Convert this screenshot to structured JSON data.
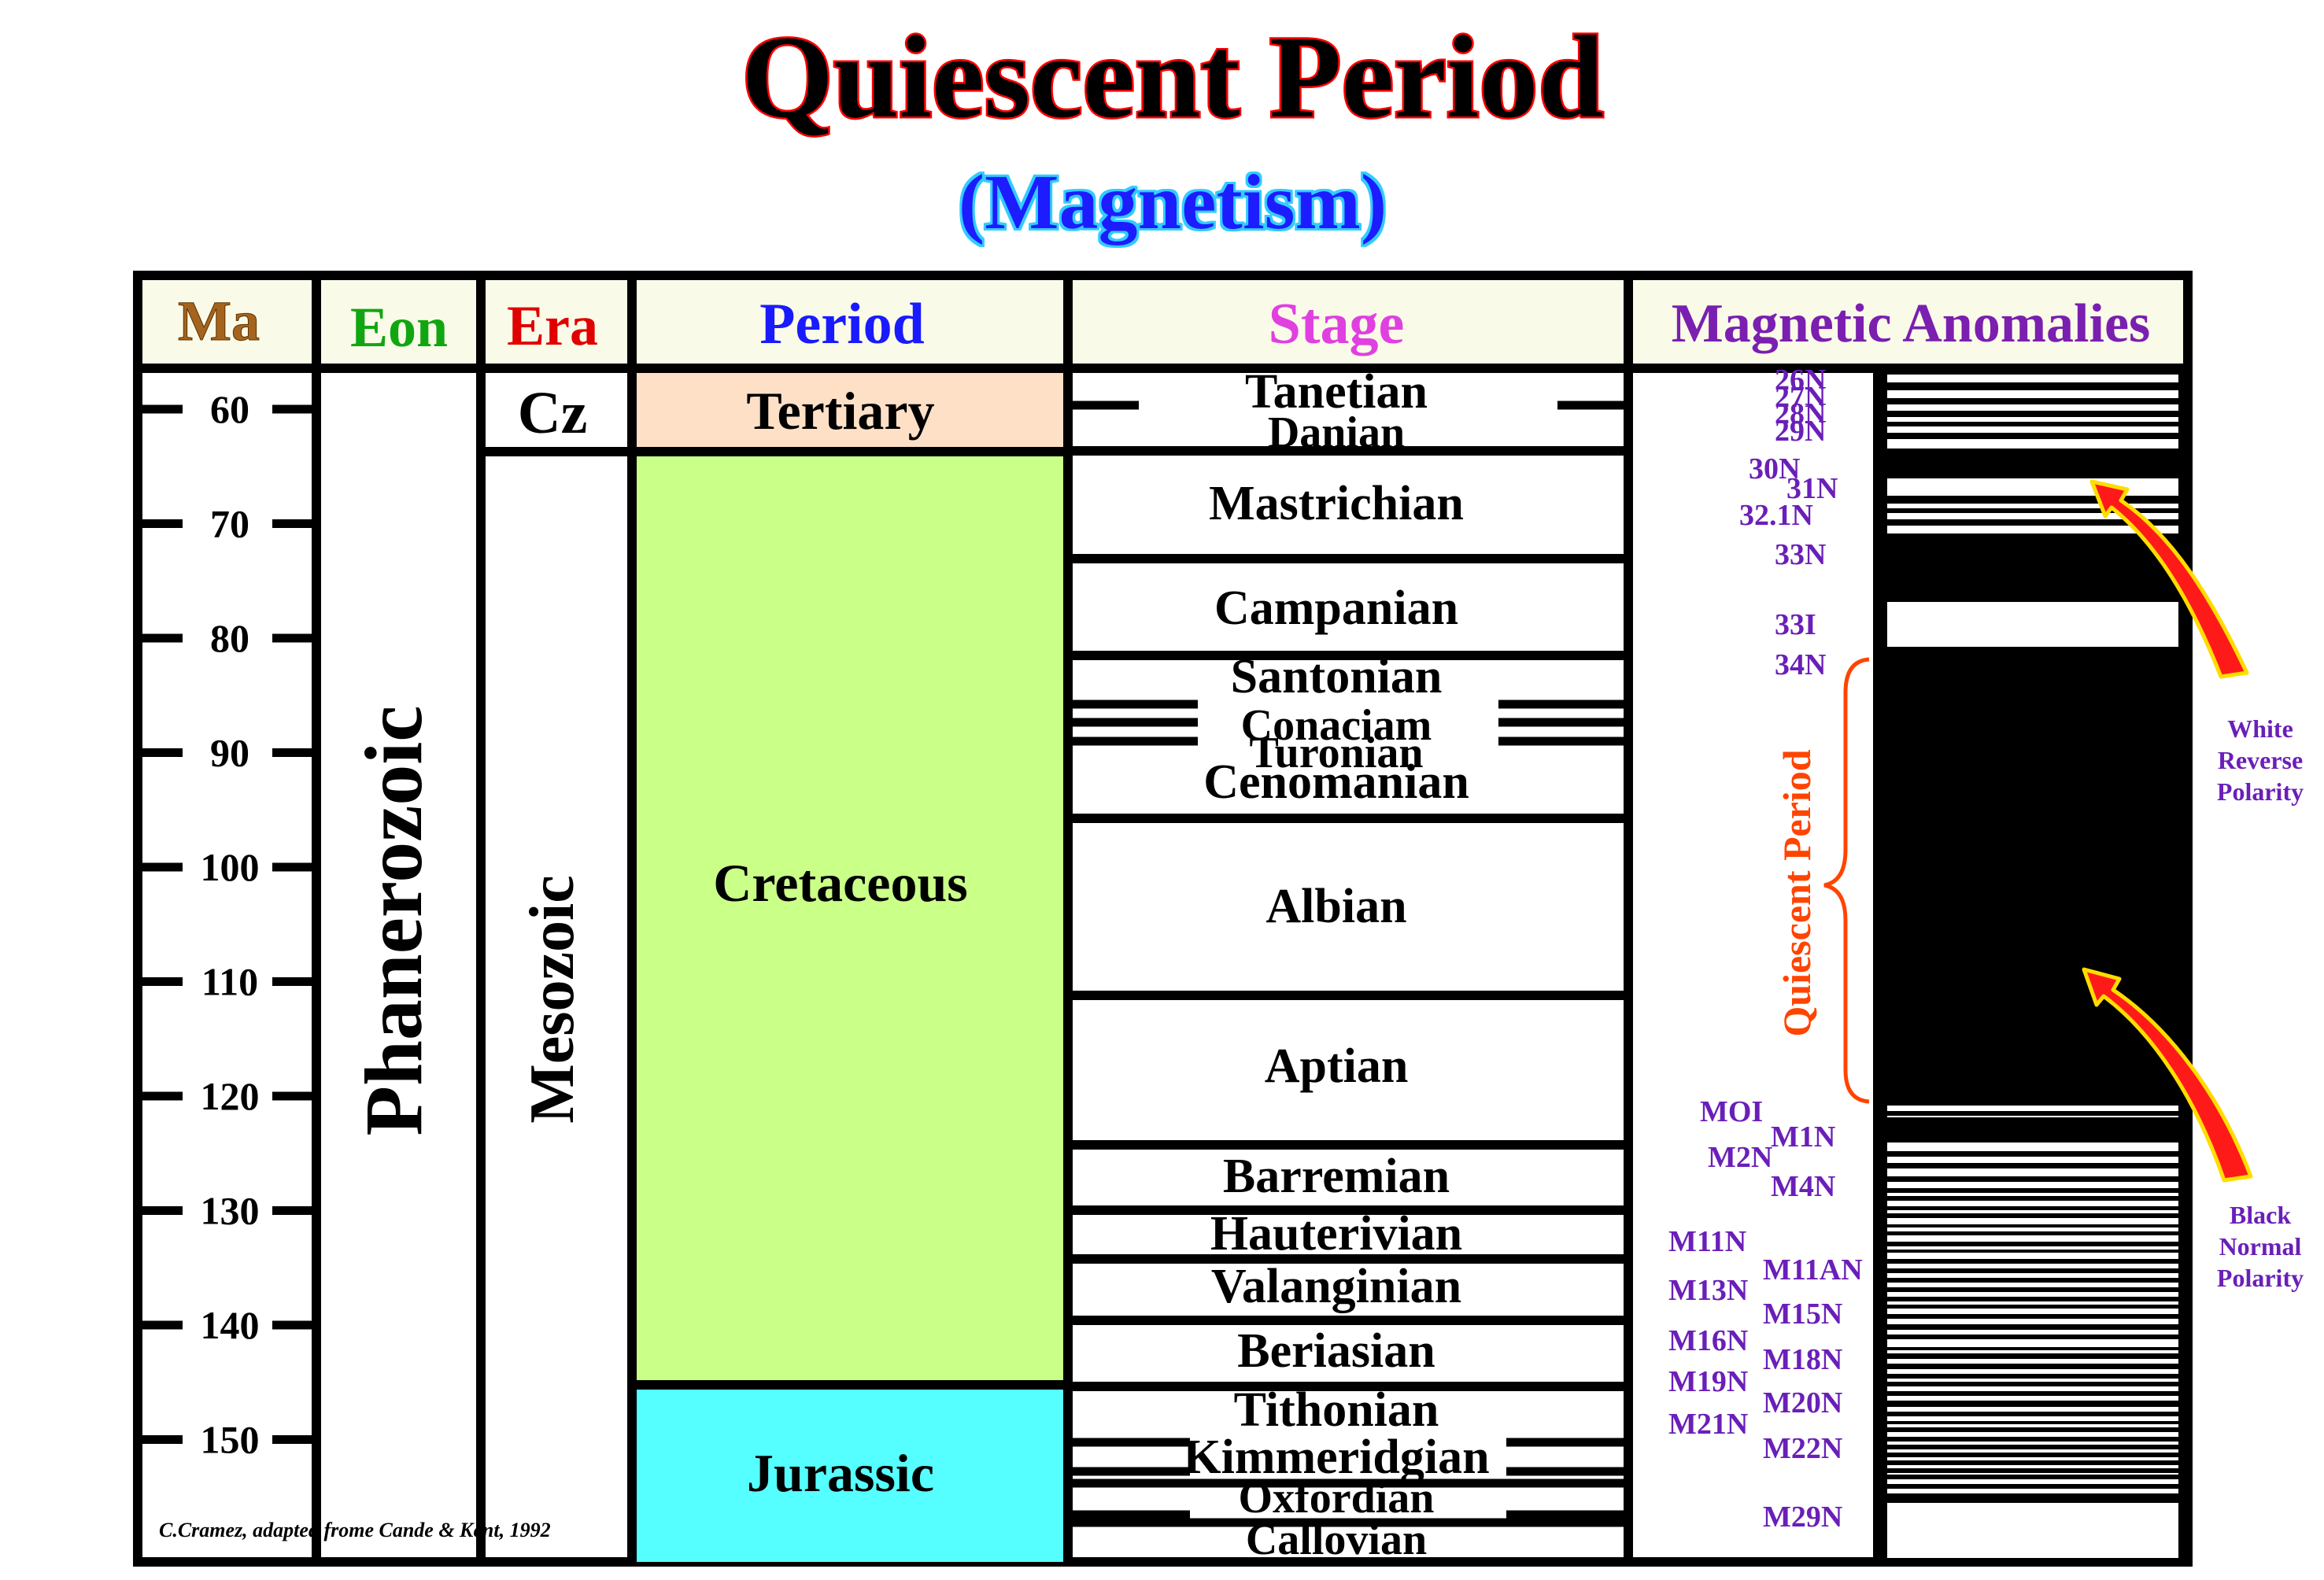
{
  "title": "Quiescent Period",
  "subtitle": "(Magnetism)",
  "headers": {
    "ma": "Ma",
    "eon": "Eon",
    "era": "Era",
    "period": "Period",
    "stage": "Stage",
    "anomalies": "Magnetic Anomalies"
  },
  "colors": {
    "ma": "#a5641e",
    "eon": "#11a611",
    "era": "#e00000",
    "period": "#1a1aff",
    "stage": "#e040e0",
    "anomalies": "#7a1fb0",
    "header_bg": "#fafae8",
    "tertiary": "#fde0c6",
    "cretaceous": "#caff88",
    "jurassic": "#55ffff",
    "purple_label": "#6a1fb8",
    "quiescent": "#ff4400"
  },
  "ma_ticks": [
    "60",
    "70",
    "80",
    "90",
    "100",
    "110",
    "120",
    "130",
    "140",
    "150"
  ],
  "eon": "Phanerozoic",
  "eras": [
    {
      "name": "Cz",
      "vertical": false
    },
    {
      "name": "Mesozoic",
      "vertical": true
    }
  ],
  "periods": [
    {
      "name": "Tertiary",
      "color": "#fde0c6"
    },
    {
      "name": "Cretaceous",
      "color": "#caff88"
    },
    {
      "name": "Jurassic",
      "color": "#55ffff"
    }
  ],
  "stages": [
    "Tanetian",
    "Danian",
    "Mastrichian",
    "Campanian",
    "Santonian",
    "Conaciam",
    "Turonian",
    "Cenomanian",
    "Albian",
    "Aptian",
    "Barremian",
    "Hauterivian",
    "Valanginian",
    "Beriasian",
    "Tithonian",
    "Kimmeridgian",
    "Oxfordian",
    "Callovian"
  ],
  "anomaly_labels": [
    "26N",
    "27N",
    "28N",
    "29N",
    "30N",
    "31N",
    "32.1N",
    "33N",
    "33I",
    "34N",
    "MOI",
    "M1N",
    "M2N",
    "M4N",
    "M11N",
    "M11AN",
    "M13N",
    "M15N",
    "M16N",
    "M18N",
    "M19N",
    "M20N",
    "M21N",
    "M22N",
    "M29N"
  ],
  "quiescent_label": "Quiescent Period",
  "annotations": {
    "white": [
      "White",
      "Reverse",
      "Polarity"
    ],
    "black": [
      "Black",
      "Normal",
      "Polarity"
    ]
  },
  "credit": "C.Cramez, adapted frome Cande & Kent, 1992"
}
